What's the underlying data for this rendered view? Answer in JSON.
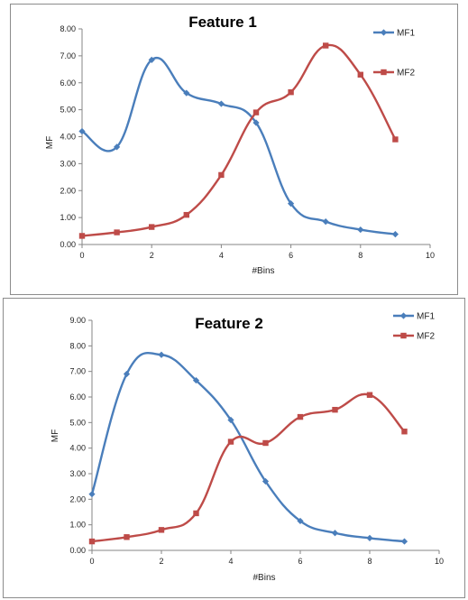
{
  "colors": {
    "mf1": "#4a7ebb",
    "mf2": "#be4b48",
    "axis": "#868686"
  },
  "chart_data": [
    {
      "type": "line",
      "title": "Feature 1",
      "xlabel": "#Bins",
      "ylabel": "MF",
      "xlim": [
        0,
        10
      ],
      "ylim": [
        0,
        8
      ],
      "x_ticks": [
        "0",
        "2",
        "4",
        "6",
        "8",
        "10"
      ],
      "y_ticks": [
        "0.00",
        "1.00",
        "2.00",
        "3.00",
        "4.00",
        "5.00",
        "6.00",
        "7.00",
        "8.00"
      ],
      "legend_position": "top-right",
      "smooth": true,
      "x": [
        0,
        1,
        2,
        3,
        4,
        5,
        6,
        7,
        8,
        9
      ],
      "series": [
        {
          "name": "MF1",
          "marker": "diamond",
          "values": [
            4.2,
            3.62,
            6.85,
            5.62,
            5.22,
            4.52,
            1.52,
            0.85,
            0.55,
            0.38
          ]
        },
        {
          "name": "MF2",
          "marker": "square",
          "values": [
            0.32,
            0.45,
            0.65,
            1.1,
            2.58,
            4.9,
            5.65,
            7.38,
            6.3,
            3.9
          ]
        }
      ]
    },
    {
      "type": "line",
      "title": "Feature 2",
      "xlabel": "#Bins",
      "ylabel": "MF",
      "xlim": [
        0,
        10
      ],
      "ylim": [
        0,
        9
      ],
      "x_ticks": [
        "0",
        "2",
        "4",
        "6",
        "8",
        "10"
      ],
      "y_ticks": [
        "0.00",
        "1.00",
        "2.00",
        "3.00",
        "4.00",
        "5.00",
        "6.00",
        "7.00",
        "8.00",
        "9.00"
      ],
      "legend_position": "top-right",
      "smooth": true,
      "x": [
        0,
        1,
        2,
        3,
        4,
        5,
        6,
        7,
        8,
        9
      ],
      "series": [
        {
          "name": "MF1",
          "marker": "diamond",
          "values": [
            2.2,
            6.9,
            7.65,
            6.65,
            5.1,
            2.7,
            1.15,
            0.68,
            0.48,
            0.35
          ]
        },
        {
          "name": "MF2",
          "marker": "square",
          "values": [
            0.35,
            0.52,
            0.8,
            1.45,
            4.25,
            4.2,
            5.22,
            5.5,
            6.08,
            4.65
          ]
        }
      ]
    }
  ]
}
